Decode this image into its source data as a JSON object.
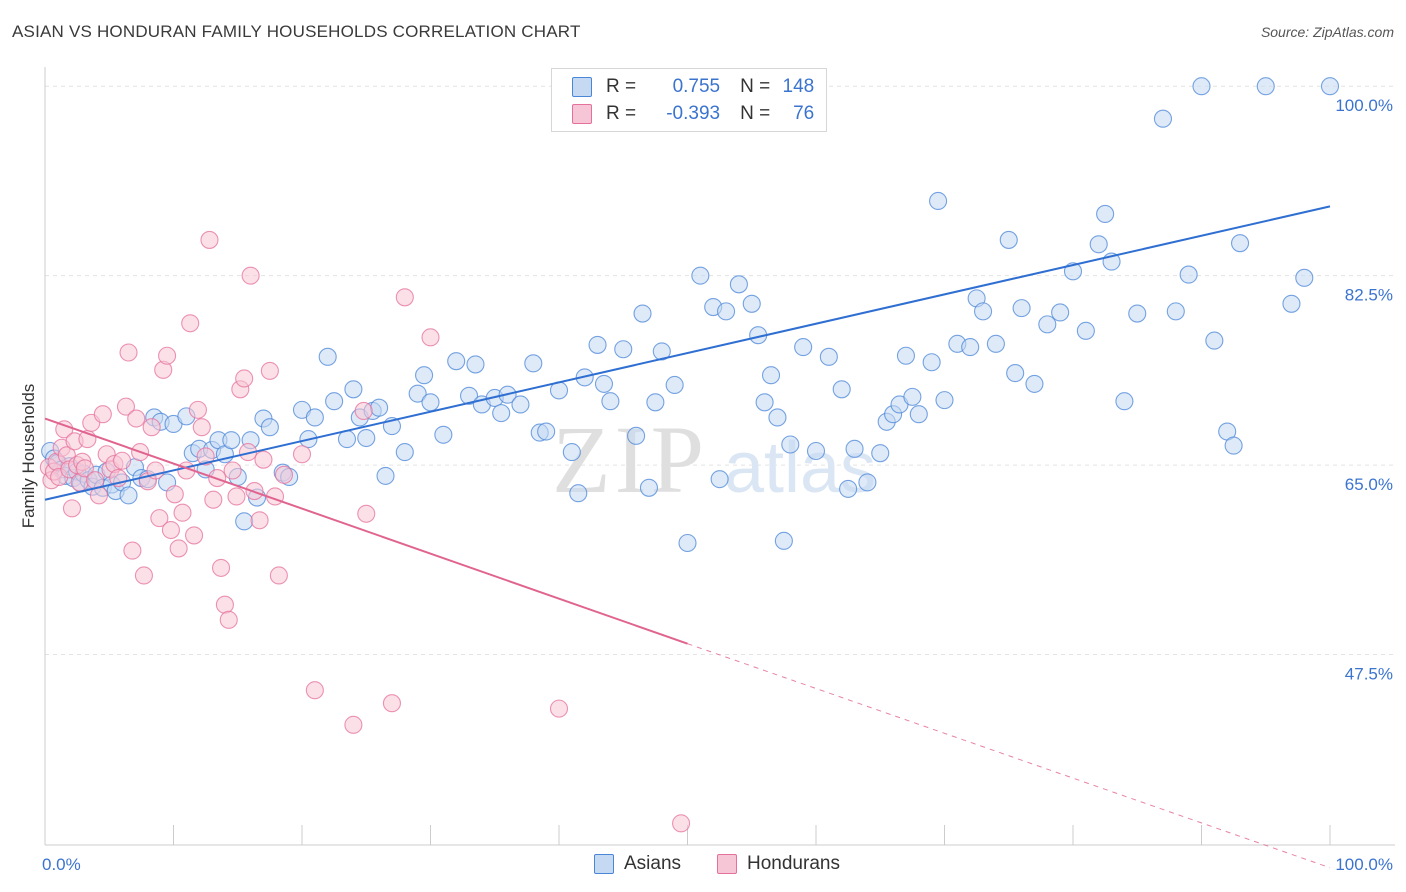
{
  "title": "ASIAN VS HONDURAN FAMILY HOUSEHOLDS CORRELATION CHART",
  "source": "Source: ZipAtlas.com",
  "watermark": {
    "zip": "ZIP",
    "atlas": "atlas"
  },
  "colors": {
    "asian": "#4a86d8",
    "asian_fill": "#c5d9f3",
    "honduran": "#e5709b",
    "honduran_fill": "#f7c6d6",
    "tick_label": "#3b74cf"
  },
  "legend": {
    "r_label": "R =",
    "n_label": "N =",
    "asian": {
      "r": "0.755",
      "n": "148"
    },
    "honduran": {
      "r": "-0.393",
      "n": "76"
    }
  },
  "chart_data": {
    "type": "scatter",
    "title": "ASIAN VS HONDURAN FAMILY HOUSEHOLDS CORRELATION CHART",
    "xlabel": "",
    "ylabel": "Family Households",
    "xlim": [
      0,
      100
    ],
    "ylim": [
      29.9,
      101.5
    ],
    "x_tick_labels": [
      "0.0%",
      "100.0%"
    ],
    "y_ticks": [
      {
        "value": 47.5,
        "label": "47.5%"
      },
      {
        "value": 65.0,
        "label": "65.0%"
      },
      {
        "value": 82.5,
        "label": "82.5%"
      },
      {
        "value": 100.0,
        "label": "100.0%"
      }
    ],
    "grid": true,
    "legend_position": "top-center",
    "series": [
      {
        "name": "Asians",
        "r": 0.755,
        "n": 148,
        "trend": {
          "x": [
            0,
            100
          ],
          "y": [
            61.8,
            88.9
          ],
          "style": "solid"
        },
        "points": [
          [
            0.4,
            66.3
          ],
          [
            0.7,
            65.6
          ],
          [
            1.0,
            65.2
          ],
          [
            1.3,
            64.6
          ],
          [
            1.6,
            64.0
          ],
          [
            1.9,
            64.9
          ],
          [
            2.2,
            63.8
          ],
          [
            2.5,
            64.4
          ],
          [
            2.8,
            63.3
          ],
          [
            3.0,
            64.2
          ],
          [
            3.4,
            63.6
          ],
          [
            3.7,
            63.0
          ],
          [
            4.0,
            64.1
          ],
          [
            4.5,
            62.9
          ],
          [
            4.8,
            64.4
          ],
          [
            5.2,
            63.2
          ],
          [
            5.5,
            62.6
          ],
          [
            6.0,
            63.4
          ],
          [
            6.5,
            62.2
          ],
          [
            7.0,
            64.8
          ],
          [
            7.5,
            63.8
          ],
          [
            8.0,
            63.7
          ],
          [
            8.5,
            69.4
          ],
          [
            9.0,
            69.0
          ],
          [
            9.5,
            63.4
          ],
          [
            10.0,
            68.8
          ],
          [
            11.0,
            69.5
          ],
          [
            11.5,
            66.1
          ],
          [
            12.0,
            66.5
          ],
          [
            12.5,
            64.6
          ],
          [
            13.0,
            66.4
          ],
          [
            13.5,
            67.3
          ],
          [
            14.0,
            66.0
          ],
          [
            14.5,
            67.3
          ],
          [
            15.0,
            63.9
          ],
          [
            15.5,
            59.8
          ],
          [
            16.0,
            67.3
          ],
          [
            16.5,
            62.0
          ],
          [
            17.0,
            69.3
          ],
          [
            17.5,
            68.5
          ],
          [
            18.5,
            64.3
          ],
          [
            19.0,
            63.9
          ],
          [
            20.0,
            70.1
          ],
          [
            20.5,
            67.4
          ],
          [
            21.0,
            69.4
          ],
          [
            22.0,
            75.0
          ],
          [
            22.5,
            70.9
          ],
          [
            23.5,
            67.4
          ],
          [
            24.0,
            72.0
          ],
          [
            24.5,
            69.4
          ],
          [
            25.0,
            67.5
          ],
          [
            25.5,
            70.0
          ],
          [
            26.0,
            70.3
          ],
          [
            26.5,
            64.0
          ],
          [
            27.0,
            68.6
          ],
          [
            28.0,
            66.2
          ],
          [
            29.0,
            71.6
          ],
          [
            29.5,
            73.3
          ],
          [
            30.0,
            70.8
          ],
          [
            31.0,
            67.8
          ],
          [
            32.0,
            74.6
          ],
          [
            33.0,
            71.4
          ],
          [
            33.5,
            74.3
          ],
          [
            34.0,
            70.6
          ],
          [
            35.0,
            71.2
          ],
          [
            35.5,
            69.8
          ],
          [
            36.0,
            71.5
          ],
          [
            37.0,
            70.6
          ],
          [
            38.0,
            74.4
          ],
          [
            38.5,
            68.0
          ],
          [
            39.0,
            68.1
          ],
          [
            40.0,
            71.9
          ],
          [
            41.0,
            66.2
          ],
          [
            41.5,
            62.4
          ],
          [
            42.0,
            73.1
          ],
          [
            43.0,
            76.1
          ],
          [
            43.5,
            72.5
          ],
          [
            44.0,
            70.9
          ],
          [
            45.0,
            75.7
          ],
          [
            46.0,
            67.7
          ],
          [
            46.5,
            79.0
          ],
          [
            47.0,
            62.9
          ],
          [
            47.5,
            70.8
          ],
          [
            48.0,
            75.5
          ],
          [
            49.0,
            72.4
          ],
          [
            50.0,
            57.8
          ],
          [
            51.0,
            82.5
          ],
          [
            52.0,
            79.6
          ],
          [
            52.5,
            63.7
          ],
          [
            53.0,
            79.2
          ],
          [
            54.0,
            81.7
          ],
          [
            55.0,
            79.9
          ],
          [
            55.5,
            77.0
          ],
          [
            56.0,
            70.8
          ],
          [
            56.5,
            73.3
          ],
          [
            57.0,
            69.4
          ],
          [
            57.5,
            58.0
          ],
          [
            58.0,
            66.9
          ],
          [
            59.0,
            75.9
          ],
          [
            60.0,
            66.3
          ],
          [
            61.0,
            75.0
          ],
          [
            62.0,
            72.0
          ],
          [
            62.5,
            62.8
          ],
          [
            63.0,
            66.5
          ],
          [
            64.0,
            63.4
          ],
          [
            65.0,
            66.1
          ],
          [
            65.5,
            69.0
          ],
          [
            66.0,
            69.7
          ],
          [
            66.5,
            70.6
          ],
          [
            67.0,
            75.1
          ],
          [
            67.5,
            71.3
          ],
          [
            68.0,
            69.7
          ],
          [
            69.0,
            74.5
          ],
          [
            69.5,
            89.4
          ],
          [
            70.0,
            71.0
          ],
          [
            71.0,
            76.2
          ],
          [
            72.0,
            75.9
          ],
          [
            72.5,
            80.4
          ],
          [
            73.0,
            79.2
          ],
          [
            74.0,
            76.2
          ],
          [
            75.0,
            85.8
          ],
          [
            75.5,
            73.5
          ],
          [
            76.0,
            79.5
          ],
          [
            77.0,
            72.5
          ],
          [
            78.0,
            78.0
          ],
          [
            79.0,
            79.1
          ],
          [
            80.0,
            82.9
          ],
          [
            81.0,
            77.4
          ],
          [
            82.0,
            85.4
          ],
          [
            82.5,
            88.2
          ],
          [
            83.0,
            83.8
          ],
          [
            84.0,
            70.9
          ],
          [
            85.0,
            79.0
          ],
          [
            87.0,
            97.0
          ],
          [
            88.0,
            79.2
          ],
          [
            89.0,
            82.6
          ],
          [
            90.0,
            100.0
          ],
          [
            91.0,
            76.5
          ],
          [
            92.0,
            68.1
          ],
          [
            92.5,
            66.8
          ],
          [
            93.0,
            85.5
          ],
          [
            95.0,
            100.0
          ],
          [
            97.0,
            79.9
          ],
          [
            98.0,
            82.3
          ],
          [
            100.0,
            100.0
          ]
        ]
      },
      {
        "name": "Hondurans",
        "r": -0.393,
        "n": 76,
        "trend": {
          "x": [
            0,
            50
          ],
          "y": [
            69.3,
            48.5
          ],
          "style": "solid",
          "extension": {
            "x": [
              50,
              100
            ],
            "y": [
              48.5,
              27.8
            ],
            "style": "dashed"
          }
        },
        "points": [
          [
            0.3,
            64.8
          ],
          [
            0.5,
            63.6
          ],
          [
            0.7,
            64.4
          ],
          [
            0.9,
            65.3
          ],
          [
            1.1,
            63.9
          ],
          [
            1.3,
            66.6
          ],
          [
            1.5,
            68.3
          ],
          [
            1.7,
            65.9
          ],
          [
            1.9,
            64.6
          ],
          [
            2.1,
            61.0
          ],
          [
            2.3,
            67.2
          ],
          [
            2.5,
            65.0
          ],
          [
            2.7,
            63.4
          ],
          [
            2.9,
            65.3
          ],
          [
            3.1,
            64.7
          ],
          [
            3.3,
            67.4
          ],
          [
            3.6,
            68.9
          ],
          [
            3.9,
            63.6
          ],
          [
            4.2,
            62.2
          ],
          [
            4.5,
            69.7
          ],
          [
            4.8,
            66.0
          ],
          [
            5.1,
            64.6
          ],
          [
            5.4,
            65.1
          ],
          [
            5.7,
            63.8
          ],
          [
            6.0,
            65.4
          ],
          [
            6.3,
            70.4
          ],
          [
            6.5,
            75.4
          ],
          [
            6.8,
            57.1
          ],
          [
            7.1,
            69.3
          ],
          [
            7.4,
            66.2
          ],
          [
            7.7,
            54.8
          ],
          [
            8.0,
            63.5
          ],
          [
            8.3,
            68.5
          ],
          [
            8.6,
            64.5
          ],
          [
            8.9,
            60.1
          ],
          [
            9.2,
            73.8
          ],
          [
            9.5,
            75.1
          ],
          [
            9.8,
            59.0
          ],
          [
            10.1,
            62.3
          ],
          [
            10.4,
            57.3
          ],
          [
            10.7,
            60.6
          ],
          [
            11.0,
            64.5
          ],
          [
            11.3,
            78.1
          ],
          [
            11.6,
            58.5
          ],
          [
            11.9,
            70.1
          ],
          [
            12.2,
            68.5
          ],
          [
            12.5,
            65.8
          ],
          [
            12.8,
            85.8
          ],
          [
            13.1,
            61.8
          ],
          [
            13.4,
            63.8
          ],
          [
            13.7,
            55.5
          ],
          [
            14.0,
            52.1
          ],
          [
            14.3,
            50.7
          ],
          [
            14.6,
            64.5
          ],
          [
            14.9,
            62.1
          ],
          [
            15.2,
            72.0
          ],
          [
            15.5,
            73.0
          ],
          [
            15.8,
            66.2
          ],
          [
            16.0,
            82.5
          ],
          [
            16.3,
            62.6
          ],
          [
            16.7,
            59.9
          ],
          [
            17.0,
            65.5
          ],
          [
            17.5,
            73.7
          ],
          [
            17.9,
            62.1
          ],
          [
            18.2,
            54.8
          ],
          [
            18.6,
            64.1
          ],
          [
            20.0,
            66.0
          ],
          [
            21.0,
            44.2
          ],
          [
            24.0,
            41.0
          ],
          [
            24.8,
            70.0
          ],
          [
            25.0,
            60.5
          ],
          [
            27.0,
            43.0
          ],
          [
            28.0,
            80.5
          ],
          [
            30.0,
            76.8
          ],
          [
            40.0,
            42.5
          ],
          [
            49.5,
            31.9
          ]
        ]
      }
    ]
  }
}
